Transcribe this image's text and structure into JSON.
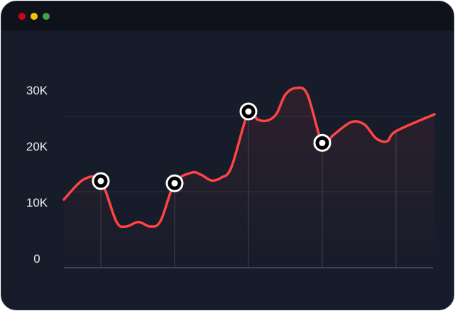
{
  "window": {
    "controls": [
      {
        "name": "close",
        "color": "#d0021b"
      },
      {
        "name": "minimize",
        "color": "#f5c400"
      },
      {
        "name": "maximize",
        "color": "#43a047"
      }
    ]
  },
  "chart_data": {
    "type": "line",
    "title": "",
    "xlabel": "",
    "ylabel": "",
    "y_tick_labels": [
      "0",
      "10K",
      "20K",
      "30K"
    ],
    "y_ticks": [
      0,
      10000,
      20000,
      30000
    ],
    "ylim": [
      0,
      32000
    ],
    "grid": true,
    "line_color": "#ff4444",
    "series": [
      {
        "x": [
          0.5,
          0.77,
          1,
          1.21,
          1.34,
          1.51,
          1.67,
          1.81,
          2,
          2.23,
          2.36,
          2.5,
          2.63,
          2.77,
          3,
          3.12,
          3.26,
          3.38,
          3.5,
          3.65,
          3.8,
          4,
          4.15,
          4.39,
          4.57,
          4.73,
          4.88,
          5,
          5.52
        ],
        "y": [
          10500,
          14100,
          13800,
          6600,
          5700,
          6500,
          5700,
          6700,
          13400,
          15300,
          14900,
          13900,
          14400,
          16300,
          26200,
          24800,
          24600,
          25800,
          29200,
          30400,
          29200,
          20600,
          22000,
          24300,
          23900,
          21400,
          20900,
          22700,
          25700
        ]
      }
    ],
    "markers": [
      {
        "x": 1,
        "y": 13800
      },
      {
        "x": 2,
        "y": 13400
      },
      {
        "x": 3,
        "y": 26200
      },
      {
        "x": 4,
        "y": 20600
      }
    ],
    "vertical_guides_x": [
      1,
      2,
      3,
      4,
      5
    ]
  }
}
